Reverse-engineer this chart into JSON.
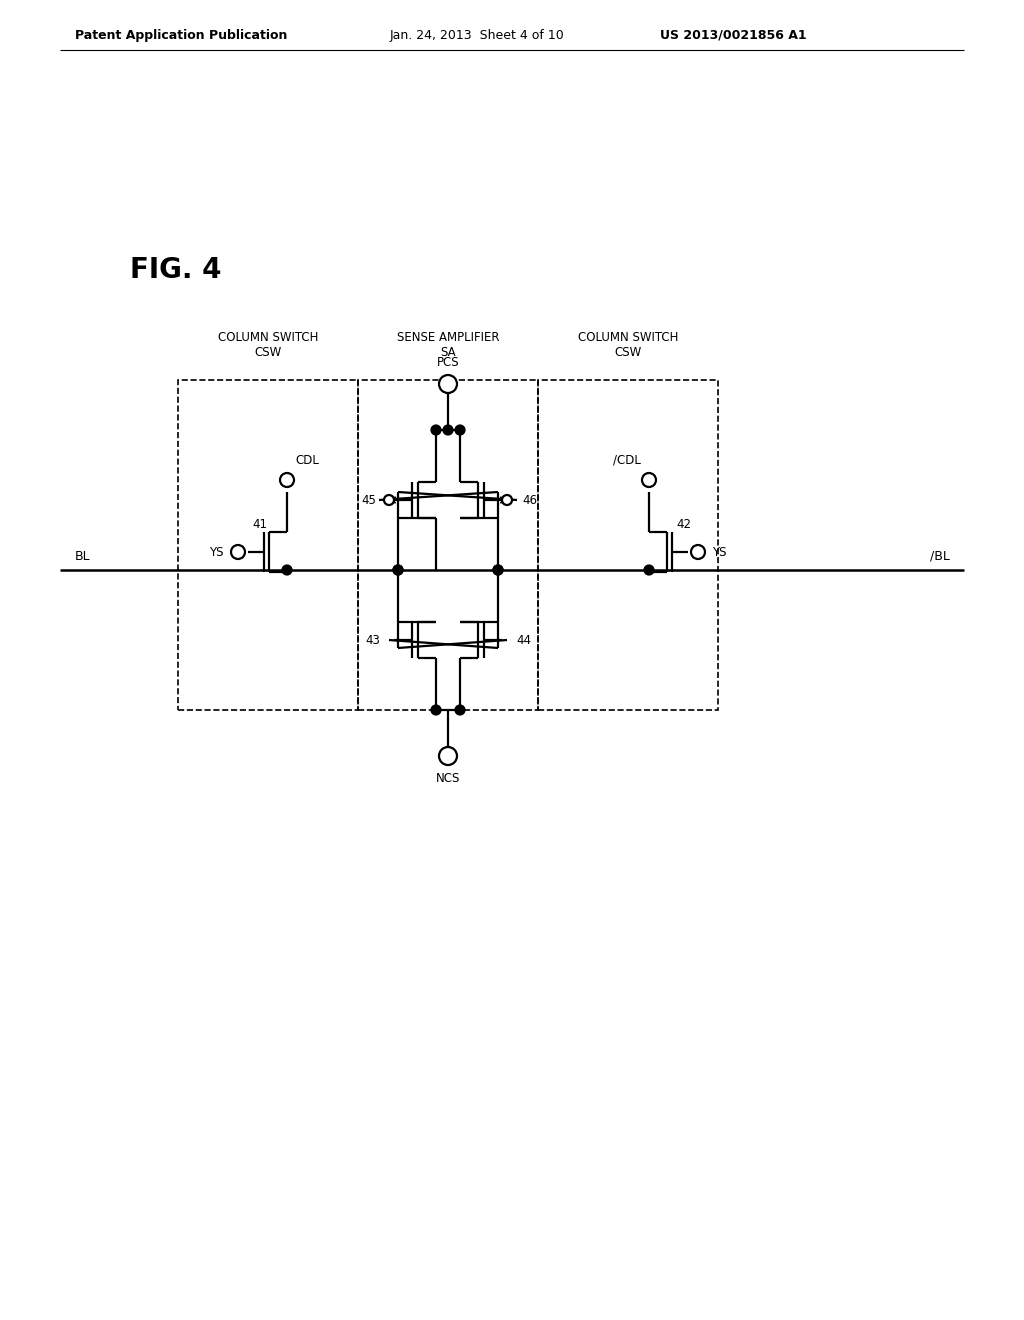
{
  "bg_color": "#ffffff",
  "line_color": "#000000",
  "header_text": "Patent Application Publication",
  "header_date": "Jan. 24, 2013  Sheet 4 of 10",
  "header_patent": "US 2013/0021856 A1",
  "fig_label": "FIG. 4",
  "label_col_switch_left": "COLUMN SWITCH\nCSW",
  "label_sense_amp": "SENSE AMPLIFIER\nSA",
  "label_col_switch_right": "COLUMN SWITCH\nCSW",
  "label_BL": "BL",
  "label_BLbar": "/BL",
  "label_PCS": "PCS",
  "label_NCS": "NCS",
  "label_CDL": "CDL",
  "label_CDLbar": "/CDL",
  "label_YS": "YS",
  "label_YSright": "YS",
  "label_41": "41",
  "label_42": "42",
  "label_43": "43",
  "label_44": "44",
  "label_45": "45",
  "label_46": "46"
}
